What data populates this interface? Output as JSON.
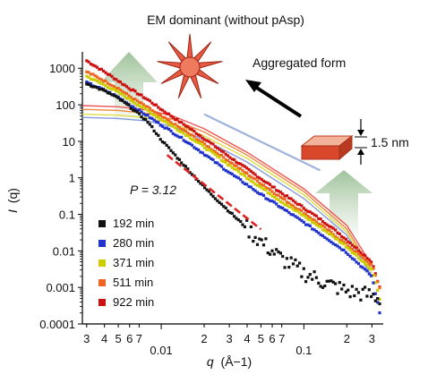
{
  "chart_data": {
    "type": "scatter",
    "title": "EM dominant (without pAsp)",
    "xlabel_var": "q",
    "xlabel_unit": "(Å−1)",
    "ylabel_var": "I",
    "ylabel_q": "(q)",
    "x_scale": "log",
    "y_scale": "log",
    "xlim": [
      0.0028,
      0.36
    ],
    "ylim": [
      0.0001,
      2500
    ],
    "x_ticks": [
      {
        "v": 0.003,
        "label": "3"
      },
      {
        "v": 0.004,
        "label": "4"
      },
      {
        "v": 0.005,
        "label": "5"
      },
      {
        "v": 0.006,
        "label": "6"
      },
      {
        "v": 0.007,
        "label": "7"
      },
      {
        "v": 0.01,
        "label": "0.01"
      },
      {
        "v": 0.02,
        "label": "2"
      },
      {
        "v": 0.03,
        "label": "3"
      },
      {
        "v": 0.04,
        "label": "4"
      },
      {
        "v": 0.05,
        "label": "5"
      },
      {
        "v": 0.06,
        "label": "6"
      },
      {
        "v": 0.07,
        "label": "7"
      },
      {
        "v": 0.1,
        "label": "0.1"
      },
      {
        "v": 0.2,
        "label": "2"
      },
      {
        "v": 0.3,
        "label": "3"
      }
    ],
    "y_ticks": [
      {
        "v": 1000,
        "label": "1000"
      },
      {
        "v": 100,
        "label": "100"
      },
      {
        "v": 10,
        "label": "10"
      },
      {
        "v": 1,
        "label": "1"
      },
      {
        "v": 0.1,
        "label": "0.1"
      },
      {
        "v": 0.01,
        "label": "0.01"
      },
      {
        "v": 0.001,
        "label": "0.001"
      },
      {
        "v": 0.0001,
        "label": "0.0001"
      }
    ],
    "legend_position": "bottom-left",
    "series": [
      {
        "name": "192 min",
        "color": "#111111",
        "x": [
          0.003,
          0.004,
          0.005,
          0.006,
          0.008,
          0.01,
          0.015,
          0.02,
          0.03,
          0.05,
          0.07,
          0.1,
          0.15,
          0.2,
          0.3,
          0.34
        ],
        "y": [
          380,
          240,
          150,
          90,
          35,
          11,
          1.9,
          0.55,
          0.12,
          0.018,
          0.006,
          0.0025,
          0.0012,
          0.0008,
          0.0006,
          0.0005
        ]
      },
      {
        "name": "280 min",
        "color": "#2233cc",
        "x": [
          0.003,
          0.004,
          0.005,
          0.006,
          0.008,
          0.01,
          0.015,
          0.02,
          0.03,
          0.05,
          0.07,
          0.1,
          0.15,
          0.2,
          0.3,
          0.34
        ],
        "y": [
          400,
          250,
          160,
          100,
          50,
          28,
          10,
          4.5,
          1.4,
          0.35,
          0.15,
          0.06,
          0.02,
          0.009,
          0.002,
          0.0002
        ]
      },
      {
        "name": "371 min",
        "color": "#cccc00",
        "x": [
          0.003,
          0.004,
          0.005,
          0.006,
          0.008,
          0.01,
          0.015,
          0.02,
          0.03,
          0.05,
          0.07,
          0.1,
          0.15,
          0.2,
          0.3,
          0.34
        ],
        "y": [
          600,
          350,
          220,
          140,
          70,
          40,
          15,
          7,
          2.2,
          0.55,
          0.22,
          0.09,
          0.03,
          0.013,
          0.003,
          0.0005
        ]
      },
      {
        "name": "511 min",
        "color": "#ee6622",
        "x": [
          0.003,
          0.004,
          0.005,
          0.006,
          0.008,
          0.01,
          0.015,
          0.02,
          0.03,
          0.05,
          0.07,
          0.1,
          0.15,
          0.2,
          0.3,
          0.34
        ],
        "y": [
          800,
          450,
          280,
          170,
          85,
          48,
          18,
          8.5,
          2.8,
          0.7,
          0.28,
          0.11,
          0.035,
          0.015,
          0.004,
          0.001
        ]
      },
      {
        "name": "922 min",
        "color": "#cc1111",
        "x": [
          0.003,
          0.004,
          0.005,
          0.006,
          0.008,
          0.01,
          0.015,
          0.02,
          0.03,
          0.05,
          0.07,
          0.1,
          0.15,
          0.2,
          0.3,
          0.34
        ],
        "y": [
          1600,
          800,
          450,
          280,
          140,
          75,
          26,
          12,
          3.8,
          0.95,
          0.38,
          0.15,
          0.05,
          0.02,
          0.005,
          0.001
        ]
      }
    ],
    "fits": [
      {
        "color": "#ee5555",
        "x": [
          0.0028,
          0.005,
          0.008,
          0.012,
          0.02,
          0.04,
          0.1,
          0.2,
          0.3
        ],
        "y": [
          95,
          88,
          72,
          50,
          22,
          5,
          0.5,
          0.05,
          0.004
        ]
      },
      {
        "color": "#f08840",
        "x": [
          0.0028,
          0.005,
          0.008,
          0.012,
          0.02,
          0.04,
          0.1,
          0.2,
          0.3
        ],
        "y": [
          75,
          70,
          58,
          40,
          18,
          4.2,
          0.42,
          0.04,
          0.003
        ]
      },
      {
        "color": "#dddd44",
        "x": [
          0.0028,
          0.005,
          0.008,
          0.012,
          0.02,
          0.04,
          0.1,
          0.2,
          0.3
        ],
        "y": [
          55,
          52,
          44,
          31,
          14,
          3.4,
          0.34,
          0.033,
          0.0025
        ]
      },
      {
        "color": "#8899dd",
        "x": [
          0.0028,
          0.005,
          0.008,
          0.012,
          0.02,
          0.04,
          0.1,
          0.2,
          0.3
        ],
        "y": [
          45,
          42,
          36,
          25,
          11,
          2.7,
          0.27,
          0.027,
          0.002
        ]
      }
    ],
    "slope_line": {
      "x": [
        0.02,
        0.13
      ],
      "y": [
        55,
        1.6
      ]
    },
    "power_law_fit": {
      "color": "#dd2222",
      "x": [
        0.011,
        0.05
      ],
      "y": [
        4.2,
        0.039
      ]
    },
    "annotations": {
      "p_value": "P = 3.12",
      "aggregated": "Aggregated form",
      "thickness": "1.5 nm"
    }
  }
}
